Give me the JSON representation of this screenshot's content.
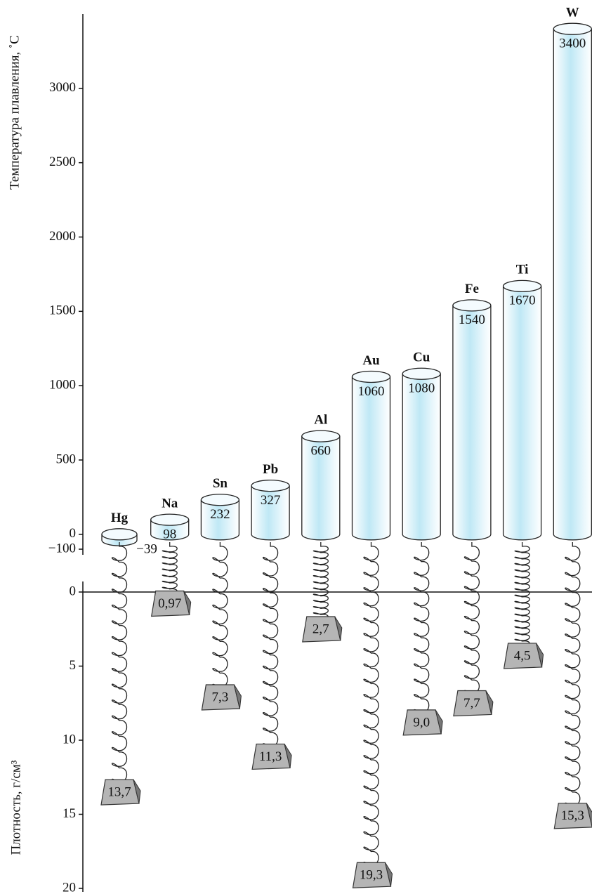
{
  "chart_data": [
    {
      "type": "cylinder",
      "y_label": "Температура плавления, ˚C",
      "categories": [
        "Hg",
        "Na",
        "Sn",
        "Pb",
        "Al",
        "Au",
        "Cu",
        "Fe",
        "Ti",
        "W"
      ],
      "values": [
        -39,
        98,
        232,
        327,
        660,
        1060,
        1080,
        1540,
        1670,
        3400
      ],
      "value_labels": [
        "−39",
        "98",
        "232",
        "327",
        "660",
        "1060",
        "1080",
        "1540",
        "1670",
        "3400"
      ],
      "color": "#bfe8f5",
      "ylim": [
        -100,
        3500
      ],
      "yticks": [
        {
          "value": -100,
          "label": "−100"
        },
        0,
        500,
        1000,
        1500,
        2000,
        2500,
        3000
      ]
    },
    {
      "type": "spring",
      "y_label": "Плотность, г/см³",
      "values": [
        13.7,
        0.97,
        7.3,
        11.3,
        2.7,
        19.3,
        9.0,
        7.7,
        4.5,
        15.3
      ],
      "value_labels": [
        "13,7",
        "0,97",
        "7,3",
        "11,3",
        "2,7",
        "19,3",
        "9,0",
        "7,7",
        "4,5",
        "15,3"
      ],
      "color": "#b5b5b5",
      "ylim": [
        0,
        20
      ],
      "inverted": true,
      "yticks": [
        0,
        5,
        10,
        15,
        20
      ]
    }
  ]
}
